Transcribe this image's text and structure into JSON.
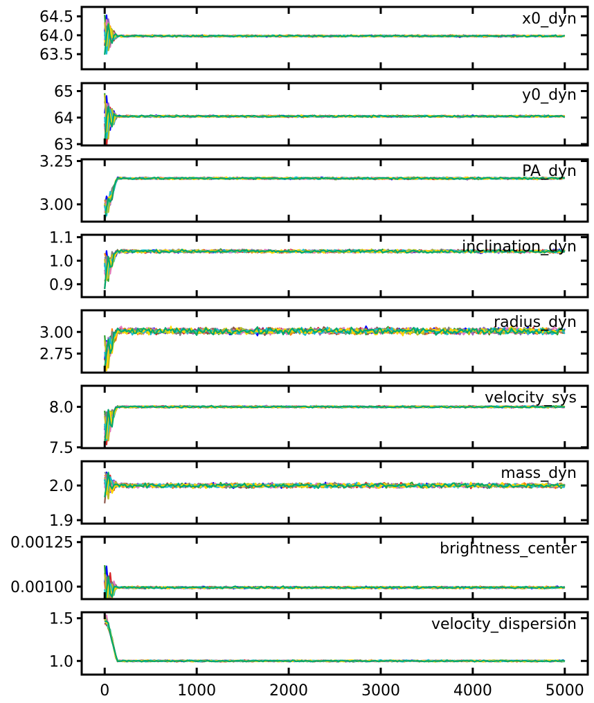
{
  "chart_data": {
    "type": "line",
    "description": "MCMC walker trace plots, one panel per parameter, shared step axis",
    "x_axis": {
      "xlim": [
        -250,
        5250
      ],
      "ticks": [
        0,
        1000,
        2000,
        3000,
        4000,
        5000
      ],
      "tick_labels": [
        "0",
        "1000",
        "2000",
        "3000",
        "4000",
        "5000"
      ]
    },
    "series_colors": [
      "#0000ff",
      "#ff7f0e",
      "#2ca02c",
      "#d62728",
      "#9467bd",
      "#8c564b",
      "#e377c2",
      "#7f7f7f",
      "#bcbd22",
      "#17becf",
      "#ffd700",
      "#00a86b",
      "#ff4500",
      "#1e90ff",
      "#a0522d",
      "#ff69b4"
    ],
    "panels": [
      {
        "name": "x0_dyn",
        "ylim": [
          63.1,
          64.75
        ],
        "yticks": [
          63.5,
          64.0,
          64.5
        ],
        "ytick_labels": [
          "63.5",
          "64.0",
          "64.5"
        ],
        "start": 64.0,
        "final": 63.98,
        "noise": 0.02,
        "burn_amp": 0.5
      },
      {
        "name": "y0_dyn",
        "ylim": [
          62.95,
          65.3
        ],
        "yticks": [
          63,
          64,
          65
        ],
        "ytick_labels": [
          "63",
          "64",
          "65"
        ],
        "start": 64.0,
        "final": 64.05,
        "noise": 0.03,
        "burn_amp": 0.9
      },
      {
        "name": "PA_dyn",
        "ylim": [
          2.9,
          3.26
        ],
        "yticks": [
          3.0,
          3.25
        ],
        "ytick_labels": [
          "3.00",
          "3.25"
        ],
        "start": 2.97,
        "final": 3.15,
        "noise": 0.005,
        "burn_amp": 0.06
      },
      {
        "name": "inclination_dyn",
        "ylim": [
          0.845,
          1.11
        ],
        "yticks": [
          0.9,
          1.0,
          1.1
        ],
        "ytick_labels": [
          "0.9",
          "1.0",
          "1.1"
        ],
        "start": 0.955,
        "final": 1.04,
        "noise": 0.006,
        "burn_amp": 0.07
      },
      {
        "name": "radius_dyn",
        "ylim": [
          2.53,
          3.25
        ],
        "yticks": [
          2.75,
          3.0
        ],
        "ytick_labels": [
          "2.75",
          "3.00"
        ],
        "start": 2.72,
        "final": 3.01,
        "noise": 0.035,
        "burn_amp": 0.2
      },
      {
        "name": "velocity_sys",
        "ylim": [
          7.49,
          8.26
        ],
        "yticks": [
          7.5,
          8.0
        ],
        "ytick_labels": [
          "7.5",
          "8.0"
        ],
        "start": 7.75,
        "final": 8.0,
        "noise": 0.01,
        "burn_amp": 0.25
      },
      {
        "name": "mass_dyn",
        "ylim": [
          1.89,
          2.07
        ],
        "yticks": [
          1.9,
          2.0
        ],
        "ytick_labels": [
          "1.9",
          "2.0"
        ],
        "start": 2.0,
        "final": 2.0,
        "noise": 0.006,
        "burn_amp": 0.04
      },
      {
        "name": "brightness_center",
        "ylim": [
          0.00093,
          0.00128
        ],
        "yticks": [
          0.001,
          0.00125
        ],
        "ytick_labels": [
          "0.00100",
          "0.00125"
        ],
        "start": 0.00098,
        "final": 0.000995,
        "noise": 5e-06,
        "burn_amp": 0.00013
      },
      {
        "name": "velocity_dispersion",
        "ylim": [
          0.84,
          1.57
        ],
        "yticks": [
          1.0,
          1.5
        ],
        "ytick_labels": [
          "1.0",
          "1.5"
        ],
        "start": 1.5,
        "final": 1.0,
        "noise": 0.008,
        "burn_amp": 0.05
      }
    ]
  }
}
